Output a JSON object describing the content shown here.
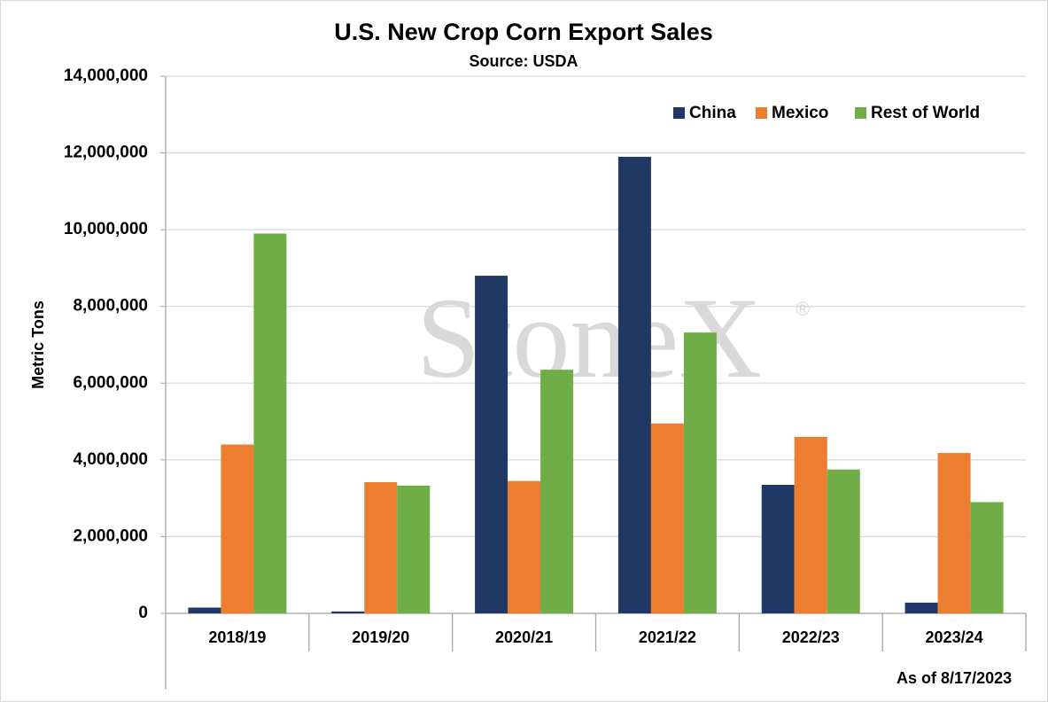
{
  "chart_data": {
    "type": "bar",
    "title": "U.S. New Crop Corn Export Sales",
    "subtitle": "Source: USDA",
    "y_label": "Metric Tons",
    "annotation": "As of 8/17/2023",
    "watermark": "StoneX",
    "watermark_mark": "®",
    "categories": [
      "2018/19",
      "2019/20",
      "2020/21",
      "2021/22",
      "2022/23",
      "2023/24"
    ],
    "series": [
      {
        "name": "China",
        "color": "#203864",
        "values": [
          150000,
          50000,
          8800000,
          11900000,
          3350000,
          280000
        ]
      },
      {
        "name": "Mexico",
        "color": "#ed7d31",
        "values": [
          4400000,
          3420000,
          3450000,
          4950000,
          4600000,
          4180000
        ]
      },
      {
        "name": "Rest of World",
        "color": "#70ad47",
        "values": [
          9900000,
          3330000,
          6350000,
          7320000,
          3750000,
          2900000
        ]
      }
    ],
    "ylim": [
      0,
      14000000
    ],
    "yticks": [
      0,
      {
        "value": 2000000,
        "label": "2,000,000"
      },
      {
        "value": 4000000,
        "label": "4,000,000"
      },
      {
        "value": 6000000,
        "label": "6,000,000"
      },
      {
        "value": 8000000,
        "label": "8,000,000"
      },
      {
        "value": 10000000,
        "label": "10,000,000"
      },
      {
        "value": 12000000,
        "label": "12,000,000"
      },
      {
        "value": 14000000,
        "label": "14,000,000"
      }
    ],
    "grid": true,
    "legend": "top-right"
  }
}
